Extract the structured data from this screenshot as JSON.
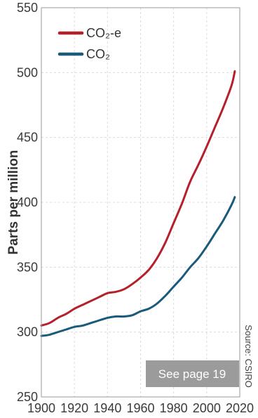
{
  "chart_data": {
    "type": "line",
    "title": "",
    "xlabel": "",
    "ylabel": "Parts per million",
    "xlim": [
      1900,
      2020
    ],
    "ylim": [
      250,
      550
    ],
    "x_ticks": [
      "1900",
      "1920",
      "1940",
      "1960",
      "1980",
      "2000",
      "2020"
    ],
    "y_ticks": [
      "250",
      "300",
      "350",
      "400",
      "450",
      "500",
      "550"
    ],
    "grid": true,
    "legend_position": "top-left",
    "series": [
      {
        "name": "CO₂-e",
        "color": "#b5202b",
        "x": [
          1900,
          1905,
          1910,
          1915,
          1920,
          1925,
          1930,
          1935,
          1940,
          1945,
          1950,
          1955,
          1960,
          1965,
          1970,
          1975,
          1980,
          1985,
          1990,
          1995,
          2000,
          2005,
          2010,
          2015,
          2017
        ],
        "y": [
          305,
          307,
          311,
          314,
          318,
          321,
          324,
          327,
          330,
          331,
          333,
          337,
          342,
          348,
          357,
          369,
          384,
          399,
          416,
          429,
          443,
          458,
          473,
          490,
          501
        ]
      },
      {
        "name": "CO₂",
        "color": "#1a5a7a",
        "x": [
          1900,
          1905,
          1910,
          1915,
          1920,
          1925,
          1930,
          1935,
          1940,
          1945,
          1950,
          1955,
          1960,
          1965,
          1970,
          1975,
          1980,
          1985,
          1990,
          1995,
          2000,
          2005,
          2010,
          2015,
          2017
        ],
        "y": [
          297,
          298,
          300,
          302,
          304,
          305,
          307,
          309,
          311,
          312,
          312,
          313,
          316,
          318,
          322,
          328,
          335,
          342,
          350,
          357,
          366,
          376,
          386,
          398,
          404
        ]
      }
    ],
    "annotation": "See page 19",
    "source": "Source: CSIRO"
  }
}
